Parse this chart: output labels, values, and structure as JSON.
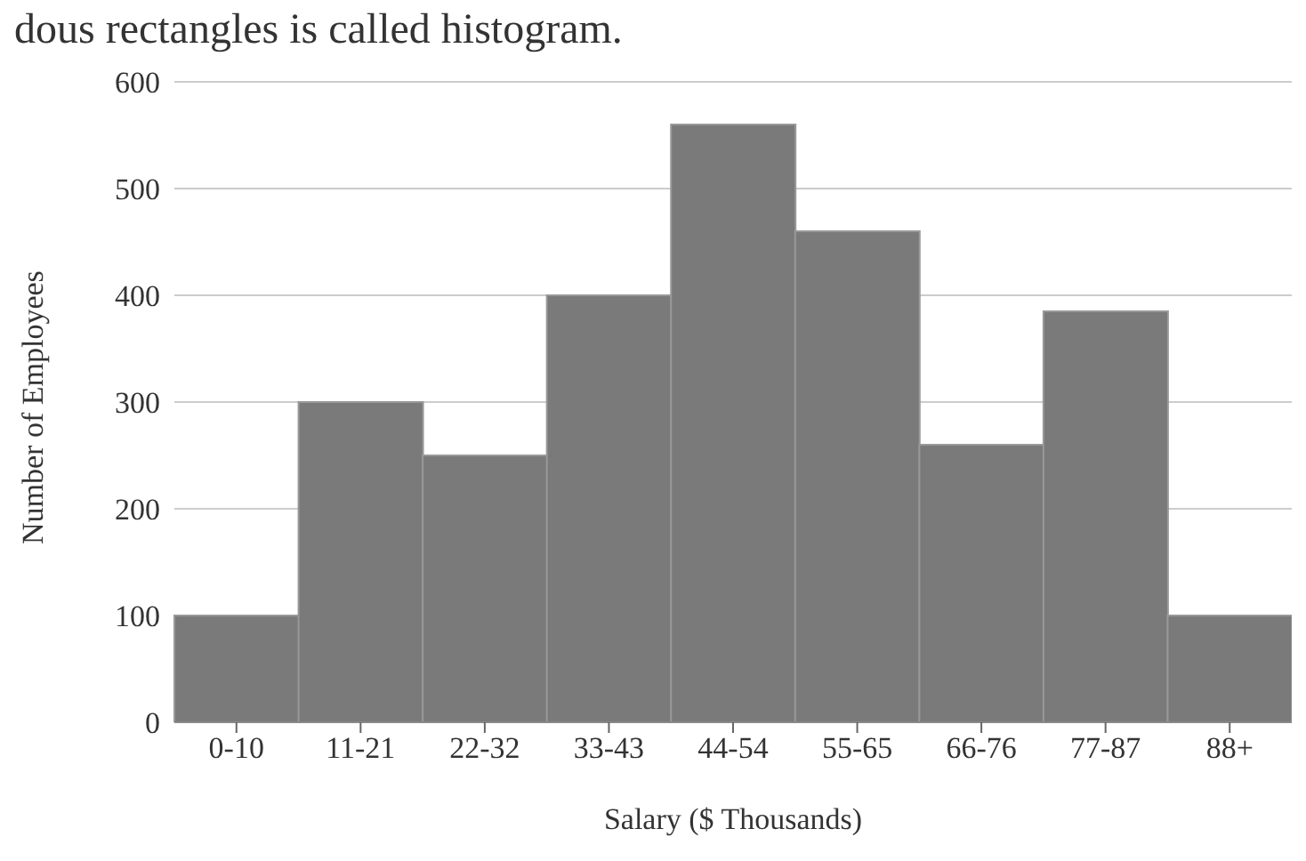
{
  "chart_data": {
    "type": "bar",
    "xlabel": "Salary ($ Thousands)",
    "ylabel": "Number of Employees",
    "annotations": [
      "dous rectangles is called histogram."
    ],
    "categories": [
      "0-10",
      "11-21",
      "22-32",
      "33-43",
      "44-54",
      "55-65",
      "66-76",
      "77-87",
      "88+"
    ],
    "values": [
      100,
      300,
      250,
      400,
      560,
      460,
      260,
      385,
      100
    ],
    "color": "#7a7a7a",
    "ylim": [
      0,
      600
    ],
    "yticks": [
      0,
      100,
      200,
      300,
      400,
      500,
      600
    ],
    "grid": "y",
    "legend": false
  }
}
